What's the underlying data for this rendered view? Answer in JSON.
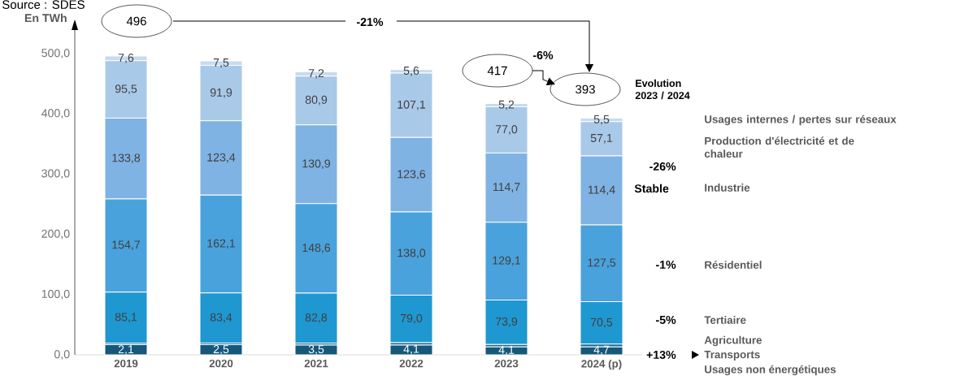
{
  "chart_data": {
    "type": "bar",
    "stacked": true,
    "legend": false,
    "grid": false,
    "ylabel": "En TWh",
    "categories": [
      "2019",
      "2020",
      "2021",
      "2022",
      "2023",
      "2024 (p)"
    ],
    "ylim": [
      0,
      550
    ],
    "yticks": [
      {
        "value": 0,
        "label": "0,0"
      },
      {
        "value": 100,
        "label": "100,0"
      },
      {
        "value": 200,
        "label": "200,0"
      },
      {
        "value": 300,
        "label": "300,0"
      },
      {
        "value": 400,
        "label": "400,0"
      },
      {
        "value": 500,
        "label": "500,0"
      }
    ],
    "series": [
      {
        "color": "#15587a",
        "values": [
          17,
          17,
          16,
          16,
          13,
          13
        ]
      },
      {
        "name": "Transports",
        "color": "#1a6f96",
        "values": [
          2.1,
          2.5,
          3.5,
          4.1,
          4.1,
          4.7
        ],
        "value_labels": [
          "2,1",
          "2,5",
          "3,5",
          "4,1",
          "4,1",
          "4,7"
        ]
      },
      {
        "name": "Tertiaire",
        "color": "#1f97d1",
        "values": [
          85.1,
          83.4,
          82.8,
          79.0,
          73.9,
          70.5
        ],
        "value_labels": [
          "85,1",
          "83,4",
          "82,8",
          "79,0",
          "73,9",
          "70,5"
        ]
      },
      {
        "name": "Résidentiel",
        "color": "#4aa2dc",
        "values": [
          154.7,
          162.1,
          148.6,
          138.0,
          129.1,
          127.5
        ],
        "value_labels": [
          "154,7",
          "162,1",
          "148,6",
          "138,0",
          "129,1",
          "127,5"
        ]
      },
      {
        "name": "Industrie",
        "color": "#7fb3e3",
        "values": [
          133.8,
          123.4,
          130.9,
          123.6,
          114.7,
          114.4
        ],
        "value_labels": [
          "133,8",
          "123,4",
          "130,9",
          "123,6",
          "114,7",
          "114,4"
        ]
      },
      {
        "name": "Production d'électricité et de chaleur",
        "color": "#a9c9e9",
        "values": [
          95.5,
          91.9,
          80.9,
          107.1,
          77.0,
          57.1
        ],
        "value_labels": [
          "95,5",
          "91,9",
          "80,9",
          "107,1",
          "77,0",
          "57,1"
        ]
      },
      {
        "name": "Usages internes / pertes sur réseaux",
        "color": "#c6dbf0",
        "values": [
          7.6,
          7.5,
          7.2,
          5.6,
          5.2,
          5.5
        ],
        "value_labels": [
          "7,6",
          "7,5",
          "7,2",
          "5,6",
          "5,2",
          "5,5"
        ]
      }
    ],
    "annotations": [
      "Source : SDES",
      "496",
      "-21%",
      "417",
      "-6%",
      "393",
      "Evolution 2023 / 2024",
      "-26%",
      "Stable",
      "-1%",
      "-5%",
      "+13%",
      "Agriculture",
      "Usages non énergétiques"
    ]
  }
}
